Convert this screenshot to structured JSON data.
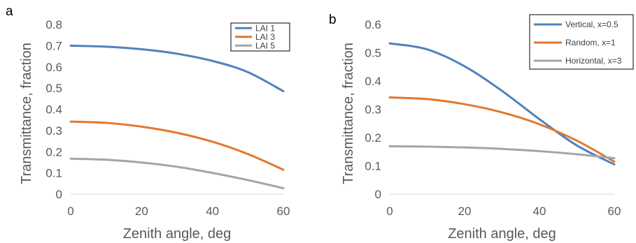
{
  "chart_data": [
    {
      "type": "line",
      "panel_label": "a",
      "xlabel": "Zenith angle, deg",
      "ylabel": "Transmittance, fraction",
      "xlim": [
        0,
        60
      ],
      "ylim": [
        0,
        0.8
      ],
      "xticks": [
        0,
        20,
        40,
        60
      ],
      "yticks": [
        0,
        0.1,
        0.2,
        0.3,
        0.4,
        0.5,
        0.6,
        0.7,
        0.8
      ],
      "x_tick_labels": [
        "0",
        "20",
        "40",
        "60"
      ],
      "y_tick_labels": [
        "0",
        "0.1",
        "0.2",
        "0.3",
        "0.4",
        "0.5",
        "0.6",
        "0.7",
        "0.8"
      ],
      "grid": false,
      "legend_position": "top-right",
      "x": [
        0,
        10,
        20,
        30,
        40,
        50,
        60
      ],
      "series": [
        {
          "name": "LAI 1",
          "color": "#4f81bd",
          "values": [
            0.7,
            0.695,
            0.683,
            0.662,
            0.628,
            0.575,
            0.485
          ]
        },
        {
          "name": "LAI 3",
          "color": "#e2772e",
          "values": [
            0.342,
            0.336,
            0.318,
            0.289,
            0.247,
            0.189,
            0.115
          ]
        },
        {
          "name": "LAI 5",
          "color": "#a5a5a5",
          "values": [
            0.167,
            0.162,
            0.149,
            0.129,
            0.1,
            0.066,
            0.028
          ]
        }
      ]
    },
    {
      "type": "line",
      "panel_label": "b",
      "xlabel": "Zenith angle, deg",
      "ylabel": "Transmittance, fraction",
      "xlim": [
        0,
        60
      ],
      "ylim": [
        0,
        0.6
      ],
      "xticks": [
        0,
        20,
        40,
        60
      ],
      "yticks": [
        0,
        0.1,
        0.2,
        0.3,
        0.4,
        0.5,
        0.6
      ],
      "x_tick_labels": [
        "0",
        "20",
        "40",
        "60"
      ],
      "y_tick_labels": [
        "0",
        "0.1",
        "0.2",
        "0.3",
        "0.4",
        "0.5",
        "0.6"
      ],
      "grid": false,
      "legend_position": "top-right",
      "x": [
        0,
        10,
        20,
        30,
        40,
        50,
        60
      ],
      "series": [
        {
          "name": "Vertical, x=0.5",
          "color": "#4f81bd",
          "values": [
            0.533,
            0.512,
            0.452,
            0.365,
            0.265,
            0.172,
            0.105
          ]
        },
        {
          "name": "Random, x=1",
          "color": "#e2772e",
          "values": [
            0.342,
            0.336,
            0.318,
            0.289,
            0.247,
            0.189,
            0.115
          ]
        },
        {
          "name": "Horizontal, x=3",
          "color": "#a5a5a5",
          "values": [
            0.169,
            0.168,
            0.165,
            0.16,
            0.152,
            0.141,
            0.127
          ]
        }
      ]
    }
  ]
}
